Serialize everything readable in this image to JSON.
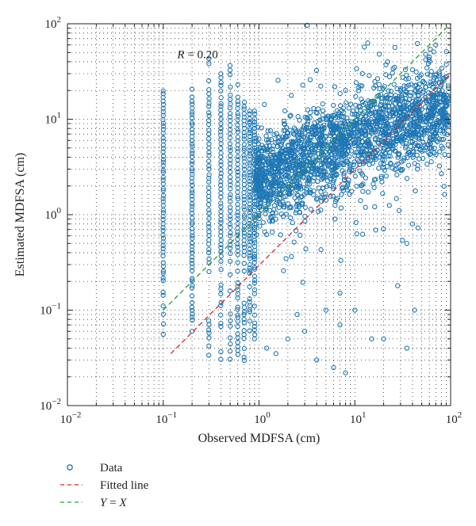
{
  "chart_data": {
    "type": "scatter",
    "title": "",
    "xlabel": "Observed MDFSA (cm)",
    "ylabel": "Estimated MDFSA (cm)",
    "xscale": "log",
    "yscale": "log",
    "xlim": [
      0.01,
      100
    ],
    "ylim": [
      0.01,
      100
    ],
    "x_ticks": [
      {
        "value": 0.01,
        "base": "10",
        "exp": "−2"
      },
      {
        "value": 0.1,
        "base": "10",
        "exp": "−1"
      },
      {
        "value": 1,
        "base": "10",
        "exp": "0"
      },
      {
        "value": 10,
        "base": "10",
        "exp": "1"
      },
      {
        "value": 100,
        "base": "10",
        "exp": "2"
      }
    ],
    "y_ticks": [
      {
        "value": 0.01,
        "base": "10",
        "exp": "−2"
      },
      {
        "value": 0.1,
        "base": "10",
        "exp": "−1"
      },
      {
        "value": 1,
        "base": "10",
        "exp": "0"
      },
      {
        "value": 10,
        "base": "10",
        "exp": "1"
      },
      {
        "value": 100,
        "base": "10",
        "exp": "2"
      }
    ],
    "grid": true,
    "annotation": {
      "var": "R",
      "text": " = 0.20",
      "x": 0.14,
      "y": 48
    },
    "series": [
      {
        "name": "Data",
        "marker": "circle-open",
        "color": "#1f77b4",
        "distribution": "dense observed/estimated cloud; vertical stacks at observed values 0.1–0.9 cm, broad cloud from 0.9 to 100 cm, estimated values approx 0.02–60 cm",
        "vertical_stacks": [
          {
            "x": 0.1,
            "y_min": 0.05,
            "y_max": 20
          },
          {
            "x": 0.2,
            "y_min": 0.06,
            "y_max": 22
          },
          {
            "x": 0.3,
            "y_min": 0.03,
            "y_max": 48
          },
          {
            "x": 0.4,
            "y_min": 0.03,
            "y_max": 30
          },
          {
            "x": 0.5,
            "y_min": 0.03,
            "y_max": 36
          },
          {
            "x": 0.6,
            "y_min": 0.035,
            "y_max": 25
          },
          {
            "x": 0.7,
            "y_min": 0.03,
            "y_max": 15
          },
          {
            "x": 0.8,
            "y_min": 0.06,
            "y_max": 12
          },
          {
            "x": 0.9,
            "y_min": 0.05,
            "y_max": 12
          }
        ],
        "sample_points": [
          [
            45,
            62
          ],
          [
            55,
            42
          ],
          [
            60,
            45
          ],
          [
            70,
            60
          ],
          [
            90,
            28
          ],
          [
            22,
            40
          ],
          [
            26,
            35
          ],
          [
            30,
            20
          ],
          [
            40,
            33
          ],
          [
            18,
            48
          ],
          [
            12,
            30
          ],
          [
            8,
            20
          ],
          [
            50,
            8
          ],
          [
            60,
            5
          ],
          [
            70,
            10
          ],
          [
            45,
            3
          ],
          [
            40,
            0.8
          ],
          [
            35,
            0.5
          ],
          [
            28,
            0.18
          ],
          [
            42,
            0.1
          ],
          [
            20,
            0.05
          ],
          [
            10,
            0.1
          ],
          [
            7,
            0.07
          ],
          [
            6,
            0.025
          ],
          [
            8,
            0.022
          ],
          [
            15,
            0.05
          ],
          [
            35,
            0.04
          ],
          [
            3,
            0.06
          ],
          [
            2,
            0.05
          ],
          [
            1.5,
            0.035
          ],
          [
            1.2,
            0.04
          ],
          [
            4,
            0.03
          ],
          [
            5,
            0.1
          ],
          [
            2.5,
            0.09
          ]
        ]
      },
      {
        "name": "Fitted line",
        "line": "dashed",
        "color": "#d62728",
        "x": [
          0.12,
          100
        ],
        "y": [
          0.035,
          30
        ]
      },
      {
        "name": "Y = X",
        "line": "dashed",
        "color": "#2ca02c",
        "x": [
          0.1,
          100
        ],
        "y": [
          0.1,
          100
        ]
      }
    ],
    "legend": {
      "placement": "below",
      "entries": [
        {
          "key": "data",
          "label": "Data",
          "var": "",
          "rest": ""
        },
        {
          "key": "fit",
          "label": "Fitted line",
          "var": "",
          "rest": ""
        },
        {
          "key": "yx",
          "label": "",
          "var": "Y",
          "rest": " = ",
          "var2": "X"
        }
      ]
    }
  }
}
